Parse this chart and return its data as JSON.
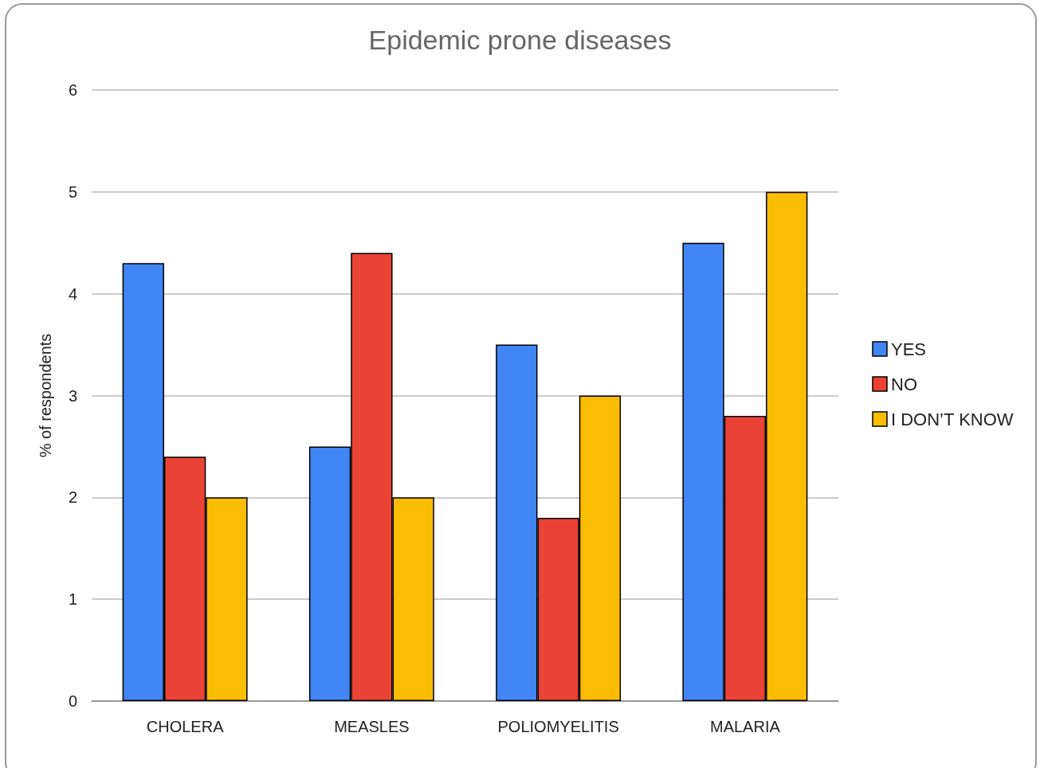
{
  "chart_data": {
    "type": "bar",
    "title": "Epidemic prone diseases",
    "ylabel": "% of respondents",
    "categories": [
      "CHOLERA",
      "MEASLES",
      "POLIOMYELITIS",
      "MALARIA"
    ],
    "series": [
      {
        "name": "YES",
        "color": "#4285f4",
        "values": [
          4.3,
          2.5,
          3.5,
          4.5
        ]
      },
      {
        "name": "NO",
        "color": "#ea4335",
        "values": [
          2.4,
          4.4,
          1.8,
          2.8
        ]
      },
      {
        "name": "I DON’T KNOW",
        "color": "#fbbc04",
        "values": [
          2.0,
          2.0,
          3.0,
          5.0
        ]
      }
    ],
    "ylim": [
      0,
      6
    ],
    "yticks": [
      0,
      1,
      2,
      3,
      4,
      5,
      6
    ],
    "grid": "y",
    "legend": "right"
  }
}
